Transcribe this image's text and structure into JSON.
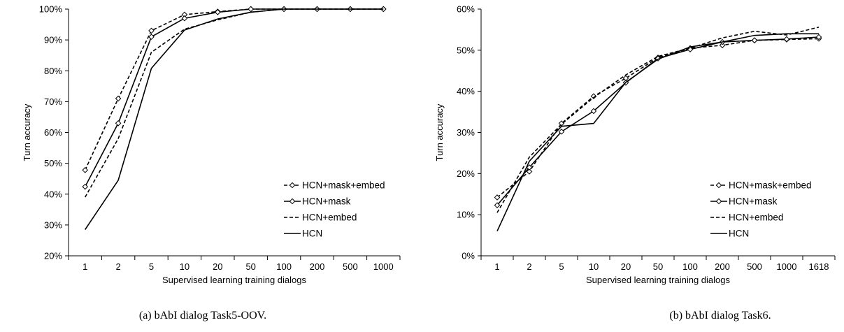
{
  "chart_data": [
    {
      "type": "line",
      "caption": "(a) bAbI dialog Task5-OOV.",
      "xlabel": "Supervised learning training dialogs",
      "ylabel": "Turn accuracy",
      "categories": [
        "1",
        "2",
        "5",
        "10",
        "20",
        "50",
        "100",
        "200",
        "500",
        "1000"
      ],
      "ylim": [
        20,
        100
      ],
      "ytick_step": 10,
      "ytick_labels": [
        "20%",
        "30%",
        "40%",
        "50%",
        "60%",
        "70%",
        "80%",
        "90%",
        "100%"
      ],
      "grid": false,
      "legend_position": "bottom-right",
      "series": [
        {
          "name": "HCN+mask+embed",
          "dash": "dashed",
          "marker": "diamond",
          "values": [
            47.8,
            71.0,
            93.0,
            98.2,
            99.2,
            100,
            100,
            100,
            100,
            100
          ]
        },
        {
          "name": "HCN+mask",
          "dash": "solid",
          "marker": "diamond",
          "values": [
            42.4,
            63.0,
            91.0,
            97.0,
            99.0,
            100,
            100,
            100,
            100,
            100
          ]
        },
        {
          "name": "HCN+embed",
          "dash": "dashed",
          "marker": "none",
          "values": [
            39.0,
            58.0,
            86.0,
            93.5,
            96.5,
            99.0,
            100,
            100,
            100,
            100
          ]
        },
        {
          "name": "HCN",
          "dash": "solid",
          "marker": "none",
          "values": [
            28.5,
            44.5,
            80.8,
            93.2,
            96.8,
            99.0,
            100,
            100,
            100,
            100
          ]
        }
      ]
    },
    {
      "type": "line",
      "caption": "(b) bAbI dialog Task6.",
      "xlabel": "Supervised learning training dialogs",
      "ylabel": "Turn accuracy",
      "categories": [
        "1",
        "2",
        "5",
        "10",
        "20",
        "50",
        "100",
        "200",
        "500",
        "1000",
        "1618"
      ],
      "ylim": [
        0,
        60
      ],
      "ytick_step": 10,
      "ytick_labels": [
        "0%",
        "10%",
        "20%",
        "30%",
        "40%",
        "50%",
        "60%"
      ],
      "grid": false,
      "legend_position": "bottom-right",
      "series": [
        {
          "name": "HCN+mask+embed",
          "dash": "dashed",
          "marker": "diamond",
          "values": [
            14.2,
            20.5,
            32.2,
            38.8,
            43.2,
            48.2,
            50.5,
            51.2,
            52.4,
            52.6,
            52.8
          ]
        },
        {
          "name": "HCN+mask",
          "dash": "solid",
          "marker": "diamond",
          "values": [
            12.3,
            21.5,
            30.2,
            35.2,
            42.1,
            48.0,
            50.2,
            52.0,
            52.4,
            52.7,
            53.2
          ]
        },
        {
          "name": "HCN+embed",
          "dash": "dashed",
          "marker": "none",
          "values": [
            10.5,
            24.0,
            32.0,
            38.5,
            44.0,
            48.5,
            50.5,
            53.0,
            54.6,
            53.7,
            55.6
          ]
        },
        {
          "name": "HCN",
          "dash": "solid",
          "marker": "none",
          "values": [
            6.0,
            23.0,
            31.5,
            32.2,
            42.2,
            47.8,
            50.8,
            52.0,
            53.6,
            54.0,
            54.0
          ]
        }
      ]
    }
  ]
}
